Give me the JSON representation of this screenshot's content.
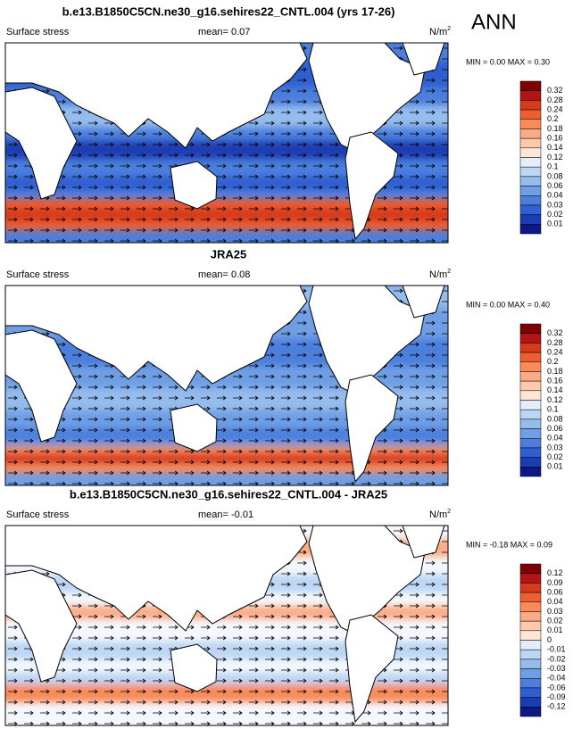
{
  "corner_label": "ANN",
  "panels": [
    {
      "title": "b.e13.B1850C5CN.ne30_g16.sehires22_CNTL.004 (yrs 17-26)",
      "left": "Surface stress",
      "center": "mean=  0.07",
      "unit": "N/m",
      "unit_sup": "2",
      "minmax": "MIN =  0.00 MAX =  0.30",
      "colorbar": {
        "labels": [
          "0.32",
          "0.28",
          "0.24",
          "0.2",
          "0.18",
          "0.16",
          "0.14",
          "0.12",
          "0.1",
          "0.08",
          "0.06",
          "0.04",
          "0.03",
          "0.02",
          "0.01"
        ],
        "colors": [
          "#7f0000",
          "#b01414",
          "#d63a1e",
          "#ee5f30",
          "#f98a5a",
          "#fcab85",
          "#fdc9ac",
          "#fde6d6",
          "#e3eefa",
          "#bcd6f3",
          "#94bced",
          "#6f9ee5",
          "#4c7fdc",
          "#2f5fd0",
          "#1b3cb2",
          "#0b1886"
        ]
      }
    },
    {
      "title": "JRA25",
      "left": "Surface stress",
      "center": "mean=  0.08",
      "unit": "N/m",
      "unit_sup": "2",
      "minmax": "MIN =  0.00 MAX =  0.40",
      "colorbar": {
        "labels": [
          "0.32",
          "0.28",
          "0.24",
          "0.2",
          "0.18",
          "0.16",
          "0.14",
          "0.12",
          "0.1",
          "0.08",
          "0.06",
          "0.04",
          "0.03",
          "0.02",
          "0.01"
        ],
        "colors": [
          "#7f0000",
          "#b01414",
          "#d63a1e",
          "#ee5f30",
          "#f98a5a",
          "#fcab85",
          "#fdc9ac",
          "#fde6d6",
          "#e3eefa",
          "#bcd6f3",
          "#94bced",
          "#6f9ee5",
          "#4c7fdc",
          "#2f5fd0",
          "#1b3cb2",
          "#0b1886"
        ]
      }
    },
    {
      "title": "b.e13.B1850C5CN.ne30_g16.sehires22_CNTL.004 - JRA25",
      "left": "Surface stress",
      "center": "mean=  -0.01",
      "unit": "N/m",
      "unit_sup": "2",
      "minmax": "MIN = -0.18 MAX =  0.09",
      "colorbar": {
        "labels": [
          "0.12",
          "0.09",
          "0.06",
          "0.04",
          "0.03",
          "0.02",
          "0.01",
          "0",
          "-0.01",
          "-0.02",
          "-0.03",
          "-0.04",
          "-0.06",
          "-0.09",
          "-0.12"
        ],
        "colors": [
          "#7f0000",
          "#b01414",
          "#d63a1e",
          "#ee5f30",
          "#f98a5a",
          "#fcab85",
          "#fdc9ac",
          "#fde6d6",
          "#e3eefa",
          "#bcd6f3",
          "#94bced",
          "#6f9ee5",
          "#4c7fdc",
          "#2f5fd0",
          "#1b3cb2",
          "#0b1886"
        ]
      }
    }
  ]
}
